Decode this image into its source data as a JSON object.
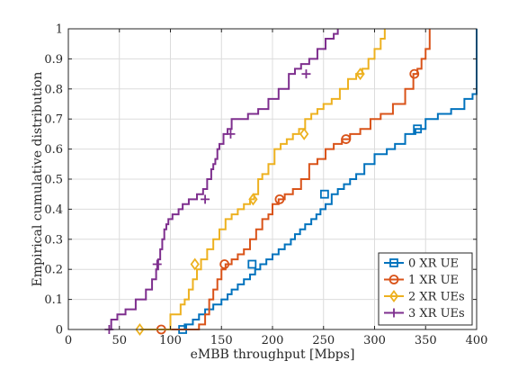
{
  "chart_data": {
    "type": "line",
    "title": "",
    "xlabel": "eMBB throughput [Mbps]",
    "ylabel": "Empirical cumulative distribution",
    "xlim": [
      0,
      400
    ],
    "ylim": [
      0,
      1
    ],
    "xticks": [
      0,
      50,
      100,
      150,
      200,
      250,
      300,
      350,
      400
    ],
    "yticks": [
      0,
      0.1,
      0.2,
      0.3,
      0.4,
      0.5,
      0.6,
      0.7,
      0.8,
      0.9,
      1
    ],
    "grid": true,
    "legend_position": "bottom-right",
    "series": [
      {
        "name": "0 XR UE",
        "color": "#0072BD",
        "marker": "square",
        "marker_points": [
          [
            112,
            0
          ],
          [
            180,
            0.217
          ],
          [
            251,
            0.45
          ],
          [
            342,
            0.667
          ]
        ],
        "x": [
          112,
          114,
          122,
          128,
          134,
          142,
          150,
          156,
          160,
          166,
          172,
          178,
          183,
          188,
          194,
          200,
          206,
          212,
          218,
          222,
          227,
          232,
          238,
          243,
          247,
          252,
          258,
          264,
          270,
          276,
          282,
          290,
          300,
          312,
          320,
          330,
          340,
          350,
          362,
          375,
          388,
          396,
          400
        ],
        "y": [
          0,
          0.017,
          0.033,
          0.05,
          0.067,
          0.083,
          0.1,
          0.117,
          0.133,
          0.15,
          0.167,
          0.183,
          0.2,
          0.217,
          0.233,
          0.25,
          0.267,
          0.283,
          0.3,
          0.317,
          0.333,
          0.35,
          0.367,
          0.383,
          0.4,
          0.417,
          0.45,
          0.467,
          0.483,
          0.5,
          0.517,
          0.55,
          0.583,
          0.6,
          0.617,
          0.65,
          0.667,
          0.7,
          0.717,
          0.733,
          0.767,
          0.783,
          1.0
        ]
      },
      {
        "name": "1 XR UE",
        "color": "#D95319",
        "marker": "circle",
        "marker_points": [
          [
            91,
            0
          ],
          [
            153,
            0.217
          ],
          [
            207,
            0.433
          ],
          [
            272,
            0.633
          ],
          [
            339,
            0.85
          ]
        ],
        "x": [
          91,
          128,
          134,
          138,
          142,
          146,
          150,
          154,
          160,
          166,
          172,
          178,
          184,
          190,
          196,
          200,
          206,
          212,
          220,
          228,
          236,
          244,
          252,
          260,
          268,
          276,
          286,
          296,
          306,
          318,
          330,
          338,
          342,
          346,
          350,
          354
        ],
        "y": [
          0,
          0.017,
          0.05,
          0.1,
          0.133,
          0.167,
          0.2,
          0.217,
          0.233,
          0.25,
          0.267,
          0.3,
          0.333,
          0.367,
          0.383,
          0.417,
          0.433,
          0.45,
          0.467,
          0.5,
          0.55,
          0.567,
          0.6,
          0.617,
          0.633,
          0.65,
          0.667,
          0.7,
          0.717,
          0.75,
          0.8,
          0.85,
          0.867,
          0.9,
          0.933,
          1.0
        ]
      },
      {
        "name": "2 XR UEs",
        "color": "#EDB120",
        "marker": "diamond",
        "marker_points": [
          [
            70,
            0
          ],
          [
            124,
            0.217
          ],
          [
            181,
            0.433
          ],
          [
            231,
            0.65
          ],
          [
            286,
            0.85
          ]
        ],
        "x": [
          70,
          100,
          110,
          114,
          118,
          122,
          126,
          130,
          136,
          142,
          148,
          154,
          160,
          166,
          172,
          178,
          182,
          186,
          190,
          196,
          202,
          208,
          214,
          220,
          226,
          232,
          238,
          244,
          250,
          258,
          266,
          274,
          282,
          288,
          294,
          300,
          306,
          310
        ],
        "y": [
          0,
          0.05,
          0.083,
          0.1,
          0.133,
          0.167,
          0.2,
          0.233,
          0.267,
          0.3,
          0.333,
          0.367,
          0.383,
          0.4,
          0.417,
          0.433,
          0.45,
          0.5,
          0.517,
          0.55,
          0.6,
          0.617,
          0.633,
          0.65,
          0.667,
          0.7,
          0.717,
          0.733,
          0.75,
          0.767,
          0.8,
          0.833,
          0.85,
          0.867,
          0.9,
          0.933,
          0.967,
          1.0
        ]
      },
      {
        "name": "3 XR UEs",
        "color": "#7E2F8E",
        "marker": "plus",
        "marker_points": [
          [
            40,
            0
          ],
          [
            87,
            0.217
          ],
          [
            134,
            0.433
          ],
          [
            159,
            0.65
          ],
          [
            233,
            0.85
          ]
        ],
        "x": [
          40,
          42,
          48,
          56,
          66,
          76,
          82,
          86,
          88,
          90,
          92,
          94,
          96,
          98,
          102,
          108,
          112,
          118,
          126,
          132,
          136,
          140,
          142,
          144,
          146,
          148,
          152,
          156,
          160,
          164,
          168,
          176,
          186,
          196,
          206,
          216,
          222,
          228,
          236,
          244,
          252,
          260,
          264
        ],
        "y": [
          0,
          0.033,
          0.05,
          0.067,
          0.1,
          0.133,
          0.167,
          0.2,
          0.233,
          0.267,
          0.3,
          0.333,
          0.35,
          0.367,
          0.383,
          0.4,
          0.417,
          0.433,
          0.45,
          0.467,
          0.5,
          0.533,
          0.55,
          0.567,
          0.6,
          0.617,
          0.65,
          0.667,
          0.7,
          0.7,
          0.7,
          0.717,
          0.733,
          0.767,
          0.8,
          0.85,
          0.867,
          0.883,
          0.9,
          0.933,
          0.967,
          0.983,
          1.0
        ]
      }
    ]
  }
}
